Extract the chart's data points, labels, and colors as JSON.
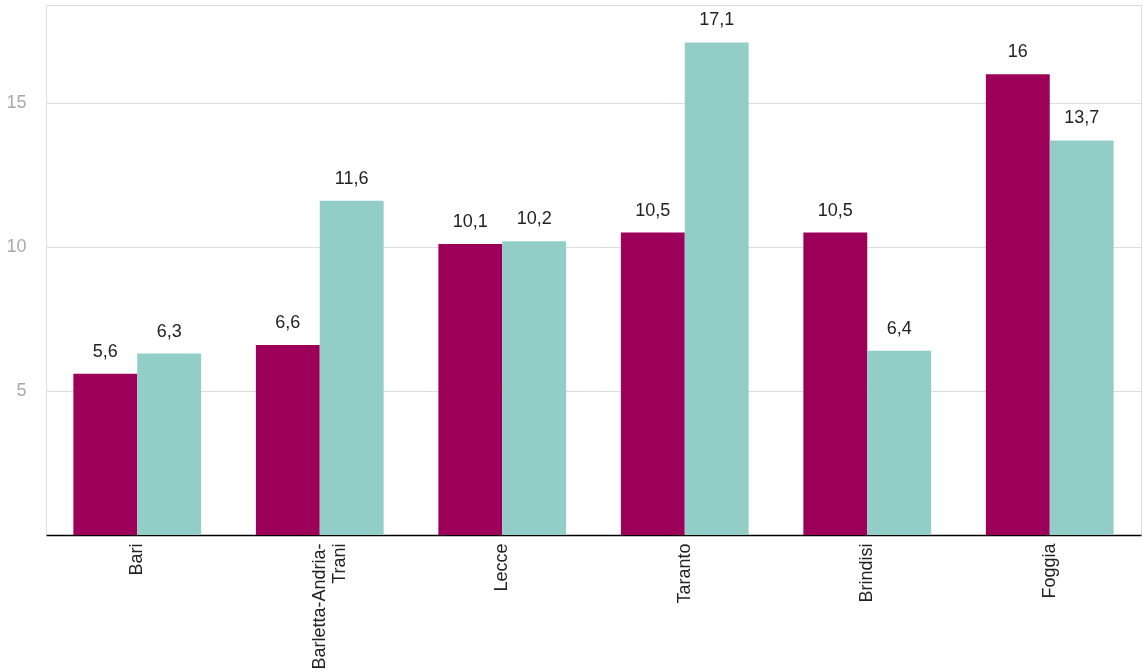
{
  "chart_data": {
    "type": "bar",
    "categories": [
      "Bari",
      "Barletta-Andria-Trani",
      "Lecce",
      "Taranto",
      "Brindisi",
      "Foggia"
    ],
    "series": [
      {
        "color": "#9c0059",
        "values": [
          5.6,
          6.6,
          10.1,
          10.5,
          10.5,
          16
        ],
        "value_labels": [
          "5,6",
          "6,6",
          "10,1",
          "10,5",
          "10,5",
          "16"
        ]
      },
      {
        "color": "#92cec7",
        "values": [
          6.3,
          11.6,
          10.2,
          17.1,
          6.4,
          13.7
        ],
        "value_labels": [
          "6,3",
          "11,6",
          "10,2",
          "17,1",
          "6,4",
          "13,7"
        ]
      }
    ],
    "ylim": [
      0,
      18.4
    ],
    "yticks": [
      5,
      10,
      15
    ],
    "grid": "y",
    "legend": false
  }
}
